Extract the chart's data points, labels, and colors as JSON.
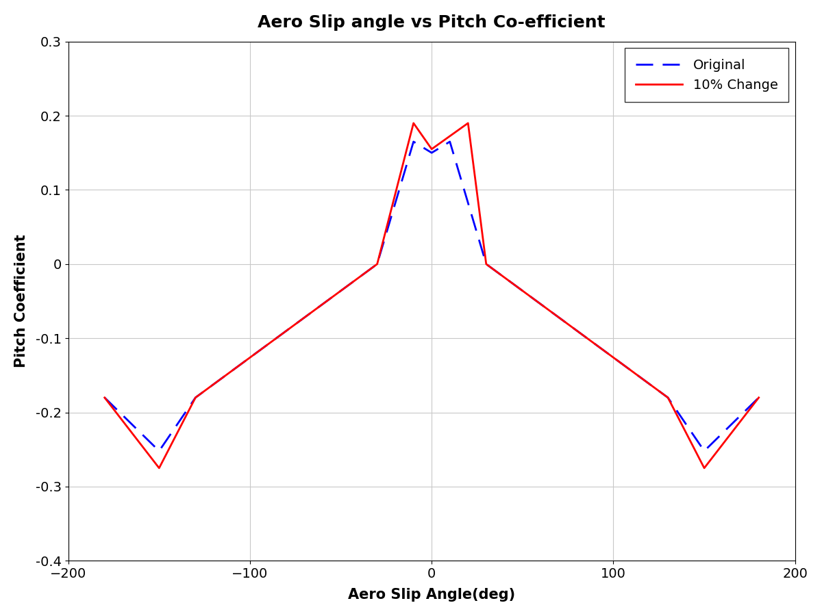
{
  "title": "Aero Slip angle vs Pitch Co-efficient",
  "xlabel": "Aero Slip Angle(deg)",
  "ylabel": "Pitch Coefficient",
  "xlim": [
    -200,
    200
  ],
  "ylim": [
    -0.4,
    0.3
  ],
  "xticks": [
    -200,
    -100,
    0,
    100,
    200
  ],
  "yticks": [
    -0.4,
    -0.3,
    -0.2,
    -0.1,
    0.0,
    0.1,
    0.2,
    0.3
  ],
  "original_x": [
    -180,
    -150,
    -130,
    -30,
    -10,
    0,
    10,
    30,
    130,
    150,
    180
  ],
  "original_y": [
    -0.18,
    -0.252,
    -0.18,
    0.0,
    0.165,
    0.15,
    0.165,
    0.0,
    -0.18,
    -0.252,
    -0.18
  ],
  "changed_x": [
    -180,
    -150,
    -130,
    -30,
    -10,
    0,
    20,
    30,
    130,
    150,
    180
  ],
  "changed_y": [
    -0.18,
    -0.275,
    -0.18,
    0.0,
    0.19,
    0.155,
    0.19,
    0.0,
    -0.18,
    -0.275,
    -0.18
  ],
  "original_color": "#0000FF",
  "changed_color": "#FF0000",
  "original_label": "Original",
  "changed_label": "10% Change",
  "title_fontsize": 18,
  "label_fontsize": 15,
  "tick_fontsize": 14,
  "legend_fontsize": 14,
  "line_width": 2.0,
  "background_color": "#FFFFFF",
  "grid_color": "#C8C8C8"
}
